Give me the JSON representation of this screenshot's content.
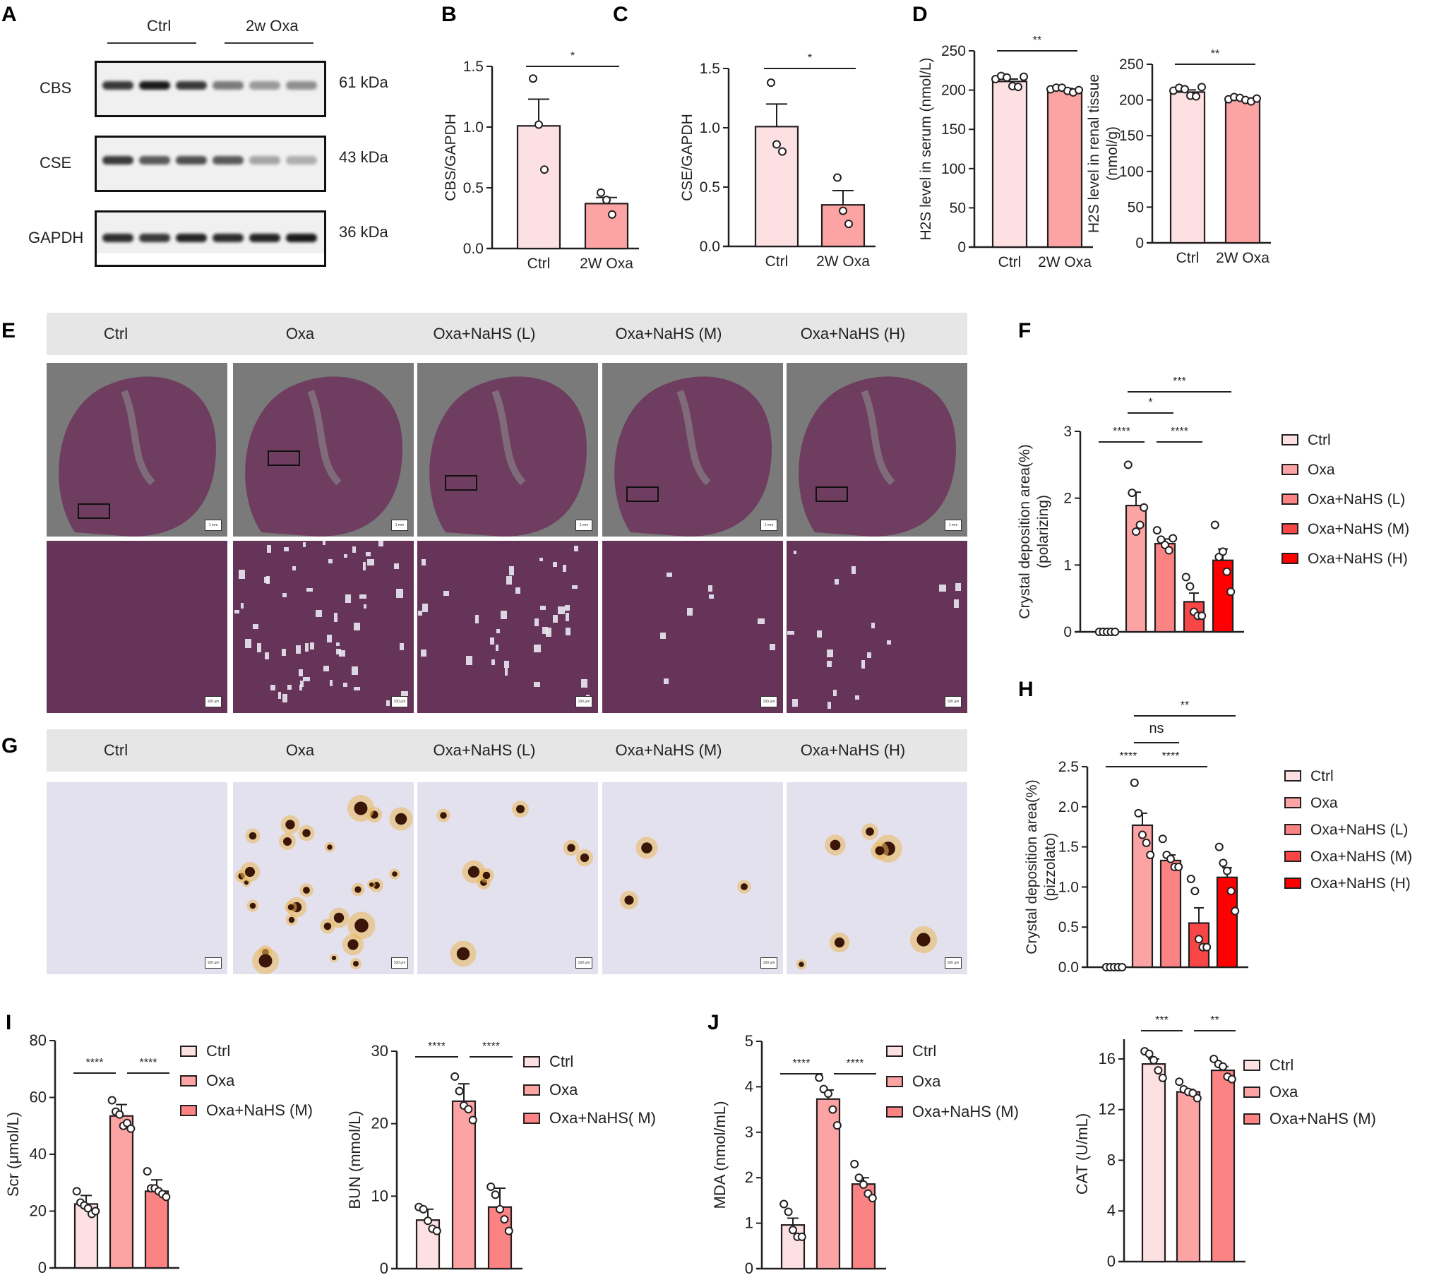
{
  "figure": {
    "panel_letters": [
      "A",
      "B",
      "C",
      "D",
      "E",
      "F",
      "G",
      "H",
      "I",
      "J"
    ]
  },
  "panelA": {
    "group_labels": [
      "Ctrl",
      "2w Oxa"
    ],
    "rows": [
      {
        "protein": "CBS",
        "size": "61 kDa",
        "intensities": [
          0.85,
          1.0,
          0.85,
          0.55,
          0.4,
          0.45
        ]
      },
      {
        "protein": "CSE",
        "size": "43 kDa",
        "intensities": [
          0.85,
          0.7,
          0.75,
          0.7,
          0.35,
          0.3
        ]
      },
      {
        "protein": "GAPDH",
        "size": "36 kDa",
        "intensities": [
          0.9,
          0.85,
          0.95,
          0.9,
          0.95,
          1.0
        ]
      }
    ]
  },
  "panelE": {
    "headers": [
      "Ctrl",
      "Oxa",
      "Oxa+NaHS  (L)",
      "Oxa+NaHS  (M)",
      "Oxa+NaHS  (H)"
    ],
    "scale_top": "1 mm",
    "scale_bottom": "100 μm"
  },
  "panelG": {
    "headers": [
      "Ctrl",
      "Oxa",
      "Oxa+NaHS  (L)",
      "Oxa+NaHS  (M)",
      "Oxa+NaHS  (H)"
    ],
    "scale": "100 μm"
  },
  "colors": {
    "ctrl": "#fde0e1",
    "oxa": "#fca3a3",
    "oxa_nahs_l": "#fc8383",
    "oxa_nahs_m": "#f84646",
    "oxa_nahs_h": "#ff0000",
    "axis": "#231f20"
  },
  "chart_data": [
    {
      "id": "B",
      "type": "bar",
      "title": "",
      "categories": [
        "Ctrl",
        "2W Oxa"
      ],
      "values": [
        1.01,
        0.37
      ],
      "errors": [
        0.22,
        0.05
      ],
      "points": [
        [
          1.4,
          1.02,
          0.65
        ],
        [
          0.46,
          0.4,
          0.28
        ]
      ],
      "ylabel": "CBS/GAPDH",
      "xlabel": "",
      "ylim": [
        0,
        1.5
      ],
      "yticks": [
        "0.0",
        "0.5",
        "1.0",
        "1.5"
      ],
      "significance": [
        {
          "from": 0,
          "to": 1,
          "label": "*"
        }
      ],
      "colors": [
        "#fde0e1",
        "#fca3a3"
      ],
      "legend": null,
      "grid": false
    },
    {
      "id": "C",
      "type": "bar",
      "title": "",
      "categories": [
        "Ctrl",
        "2W Oxa"
      ],
      "values": [
        1.01,
        0.35
      ],
      "errors": [
        0.19,
        0.12
      ],
      "points": [
        [
          1.38,
          0.86,
          0.8
        ],
        [
          0.58,
          0.3,
          0.19
        ]
      ],
      "ylabel": "CSE/GAPDH",
      "xlabel": "",
      "ylim": [
        0,
        1.5
      ],
      "yticks": [
        "0.0",
        "0.5",
        "1.0",
        "1.5"
      ],
      "significance": [
        {
          "from": 0,
          "to": 1,
          "label": "*"
        }
      ],
      "colors": [
        "#fde0e1",
        "#fca3a3"
      ],
      "legend": null,
      "grid": false
    },
    {
      "id": "D1",
      "type": "bar",
      "title": "",
      "categories": [
        "Ctrl",
        "2W Oxa"
      ],
      "values": [
        211,
        200
      ],
      "errors": [
        3,
        2
      ],
      "points": [
        [
          214,
          218,
          216,
          205,
          204,
          217
        ],
        [
          201,
          203,
          203,
          199,
          197,
          200
        ]
      ],
      "ylabel": "H2S level in serum (nmol/L)",
      "xlabel": "",
      "ylim": [
        0,
        250
      ],
      "yticks": [
        "0",
        "50",
        "100",
        "150",
        "200",
        "250"
      ],
      "significance": [
        {
          "from": 0,
          "to": 1,
          "label": "**"
        }
      ],
      "colors": [
        "#fde0e1",
        "#fca3a3"
      ],
      "legend": null,
      "grid": false
    },
    {
      "id": "D2",
      "type": "bar",
      "title": "",
      "categories": [
        "Ctrl",
        "2W Oxa"
      ],
      "values": [
        211,
        201
      ],
      "errors": [
        3,
        1.5
      ],
      "points": [
        [
          213,
          217,
          215,
          206,
          205,
          218
        ],
        [
          201,
          204,
          203,
          200,
          198,
          202
        ]
      ],
      "ylabel": "H2S level in renal tissue (nmol/g)",
      "xlabel": "",
      "ylim": [
        0,
        250
      ],
      "yticks": [
        "0",
        "50",
        "100",
        "150",
        "200",
        "250"
      ],
      "significance": [
        {
          "from": 0,
          "to": 1,
          "label": "**"
        }
      ],
      "colors": [
        "#fde0e1",
        "#fca3a3"
      ],
      "legend": null,
      "grid": false
    },
    {
      "id": "F",
      "type": "bar",
      "title": "",
      "categories": [
        "Ctrl",
        "Oxa",
        "Oxa+NaHS (L)",
        "Oxa+NaHS (M)",
        "Oxa+NaHS (H)"
      ],
      "values": [
        0.0,
        1.89,
        1.32,
        0.45,
        1.07
      ],
      "errors": [
        0.0,
        0.2,
        0.07,
        0.13,
        0.17
      ],
      "points": [
        [
          0,
          0,
          0,
          0,
          0
        ],
        [
          2.5,
          2.08,
          1.5,
          1.6,
          1.86
        ],
        [
          1.52,
          1.38,
          1.3,
          1.22,
          1.4
        ],
        [
          0.82,
          0.68,
          0.3,
          0.24,
          0.24
        ],
        [
          1.6,
          1.12,
          1.2,
          0.9,
          0.6
        ]
      ],
      "ylabel": "Crystal deposition area(%) (polarizing)",
      "xlabel": "",
      "ylim": [
        0,
        3
      ],
      "yticks": [
        "0",
        "1",
        "2",
        "3"
      ],
      "significance": [
        {
          "from": 0,
          "to": 1,
          "label": "****"
        },
        {
          "from": 2,
          "to": 3,
          "label": "****"
        },
        {
          "from": 1,
          "to": 2,
          "label": "*"
        },
        {
          "from": 1,
          "to": 4,
          "label": "***"
        }
      ],
      "colors": [
        "#fde0e1",
        "#fca3a3",
        "#fc8383",
        "#f84646",
        "#ff0000"
      ],
      "legend": [
        "Ctrl",
        "Oxa",
        "Oxa+NaHS (L)",
        "Oxa+NaHS (M)",
        "Oxa+NaHS (H)"
      ],
      "legend_position": "right",
      "grid": false
    },
    {
      "id": "H",
      "type": "bar",
      "title": "",
      "categories": [
        "Ctrl",
        "Oxa",
        "Oxa+NaHS (L)",
        "Oxa+NaHS (M)",
        "Oxa+NaHS (H)"
      ],
      "values": [
        0.0,
        1.77,
        1.33,
        0.55,
        1.12
      ],
      "errors": [
        0.0,
        0.15,
        0.07,
        0.19,
        0.12
      ],
      "points": [
        [
          0,
          0,
          0,
          0,
          0
        ],
        [
          2.3,
          1.92,
          1.65,
          1.55,
          1.4
        ],
        [
          1.6,
          1.4,
          1.35,
          1.25,
          1.25
        ],
        [
          1.1,
          0.95,
          0.35,
          0.25,
          0.25
        ],
        [
          1.5,
          1.3,
          1.2,
          0.95,
          0.7
        ]
      ],
      "ylabel": "Crystal deposition area(%) (pizzolato)",
      "xlabel": "",
      "ylim": [
        0,
        2.5
      ],
      "yticks": [
        "0.0",
        "0.5",
        "1.0",
        "1.5",
        "2.0",
        "2.5"
      ],
      "significance": [
        {
          "from": 0,
          "to": 1,
          "label": "****"
        },
        {
          "from": 1,
          "to": 3,
          "label": "****"
        },
        {
          "from": 1,
          "to": 2,
          "label": "ns"
        },
        {
          "from": 1,
          "to": 4,
          "label": "**"
        }
      ],
      "colors": [
        "#fde0e1",
        "#fca3a3",
        "#fc8383",
        "#f84646",
        "#ff0000"
      ],
      "legend": [
        "Ctrl",
        "Oxa",
        "Oxa+NaHS (L)",
        "Oxa+NaHS (M)",
        "Oxa+NaHS (H)"
      ],
      "legend_position": "right",
      "grid": false
    },
    {
      "id": "I1",
      "type": "bar",
      "title": "",
      "categories": [
        "Ctrl",
        "Oxa",
        "Oxa+NaHS (M)"
      ],
      "values": [
        22.5,
        53.5,
        27
      ],
      "errors": [
        3,
        4,
        4
      ],
      "points": [
        [
          27,
          23,
          22,
          21,
          19,
          20
        ],
        [
          59,
          55,
          54,
          50,
          51,
          49
        ],
        [
          34,
          28,
          28,
          27,
          26,
          25
        ]
      ],
      "ylabel": "Scr (μmol/L)",
      "xlabel": "",
      "ylim": [
        0,
        80
      ],
      "yticks": [
        "0",
        "20",
        "40",
        "60",
        "80"
      ],
      "significance": [
        {
          "from": 0,
          "to": 1,
          "label": "****"
        },
        {
          "from": 1,
          "to": 2,
          "label": "****"
        }
      ],
      "colors": [
        "#fde0e1",
        "#fca3a3",
        "#fc8383"
      ],
      "legend": [
        "Ctrl",
        "Oxa",
        "Oxa+NaHS (M)"
      ],
      "legend_position": "right",
      "grid": false
    },
    {
      "id": "I2",
      "type": "bar",
      "title": "",
      "categories": [
        "Ctrl",
        "Oxa",
        "Oxa+NaHS( M)"
      ],
      "values": [
        6.7,
        23.1,
        8.5
      ],
      "errors": [
        1.5,
        2.4,
        2.6
      ],
      "points": [
        [
          8.5,
          8.2,
          6.6,
          5.5,
          5.2
        ],
        [
          26.5,
          24.5,
          22.5,
          22,
          20.5
        ],
        [
          11.3,
          10.2,
          8.2,
          6.8,
          5.2
        ]
      ],
      "ylabel": "BUN (mmol/L)",
      "xlabel": "",
      "ylim": [
        0,
        30
      ],
      "yticks": [
        "0",
        "10",
        "20",
        "30"
      ],
      "significance": [
        {
          "from": 0,
          "to": 1,
          "label": "****"
        },
        {
          "from": 1,
          "to": 2,
          "label": "****"
        }
      ],
      "colors": [
        "#fde0e1",
        "#fca3a3",
        "#fc8383"
      ],
      "legend": [
        "Ctrl",
        "Oxa",
        "Oxa+NaHS( M)"
      ],
      "legend_position": "right",
      "grid": false
    },
    {
      "id": "J1",
      "type": "bar",
      "title": "",
      "categories": [
        "Ctrl",
        "Oxa",
        "Oxa+NaHS (M)"
      ],
      "values": [
        0.96,
        3.73,
        1.86
      ],
      "errors": [
        0.15,
        0.2,
        0.14
      ],
      "points": [
        [
          1.42,
          1.25,
          0.85,
          0.7,
          0.7
        ],
        [
          4.2,
          3.95,
          3.85,
          3.5,
          3.15
        ],
        [
          2.3,
          2.0,
          1.85,
          1.65,
          1.55
        ]
      ],
      "ylabel": "MDA (nmol/mL)",
      "xlabel": "",
      "ylim": [
        0,
        5
      ],
      "yticks": [
        "0",
        "1",
        "2",
        "3",
        "4",
        "5"
      ],
      "significance": [
        {
          "from": 0,
          "to": 1,
          "label": "****"
        },
        {
          "from": 1,
          "to": 2,
          "label": "****"
        }
      ],
      "colors": [
        "#fde0e1",
        "#fca3a3",
        "#fc8383"
      ],
      "legend": [
        "Ctrl",
        "Oxa",
        "Oxa+NaHS (M)"
      ],
      "legend_position": "right",
      "grid": false
    },
    {
      "id": "J2",
      "type": "bar",
      "title": "",
      "categories": [
        "Ctrl",
        "Oxa",
        "Oxa+NaHS (M)"
      ],
      "values": [
        15.6,
        13.4,
        15.1
      ],
      "errors": [
        0.4,
        0.2,
        0.3
      ],
      "points": [
        [
          16.6,
          16.4,
          15.9,
          15.1,
          14.5
        ],
        [
          14.2,
          13.6,
          13.4,
          13.3,
          12.9
        ],
        [
          16.0,
          15.6,
          15.4,
          14.6,
          14.4
        ]
      ],
      "ylabel": "CAT (U/mL)",
      "xlabel": "",
      "ylim": [
        0,
        17
      ],
      "yticks": [
        "0",
        "4",
        "8",
        "12",
        "16"
      ],
      "significance": [
        {
          "from": 0,
          "to": 1,
          "label": "***"
        },
        {
          "from": 1,
          "to": 2,
          "label": "**"
        }
      ],
      "colors": [
        "#fde0e1",
        "#fca3a3",
        "#fc8383"
      ],
      "legend": [
        "Ctrl",
        "Oxa",
        "Oxa+NaHS (M)"
      ],
      "legend_position": "right",
      "grid": false
    }
  ]
}
